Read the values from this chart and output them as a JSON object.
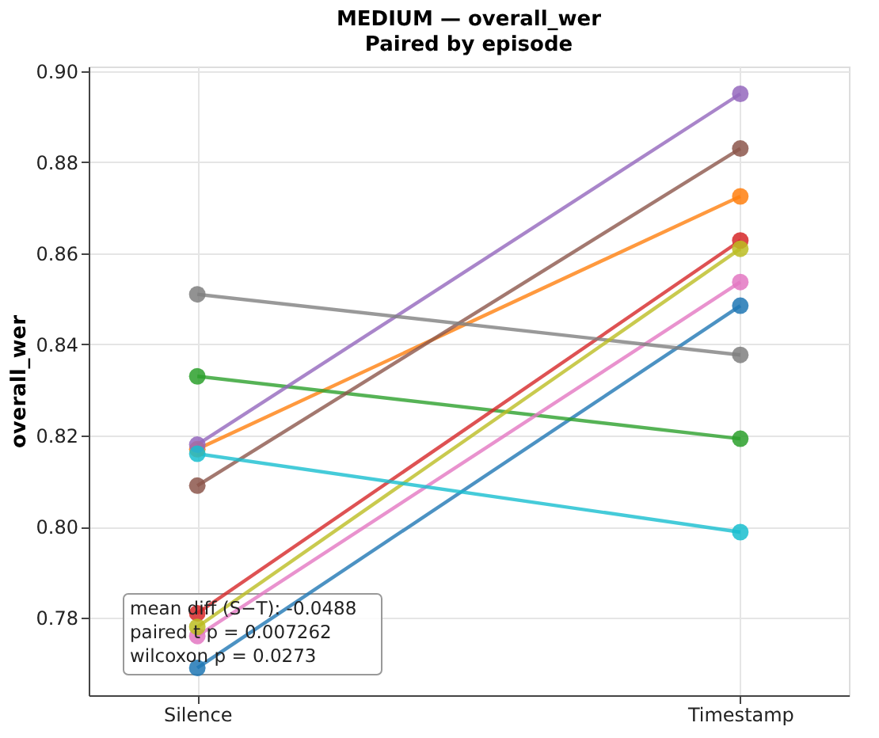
{
  "chart_data": {
    "type": "line",
    "title": "MEDIUM — overall_wer",
    "subtitle": "Paired by episode",
    "ylabel": "overall_wer",
    "categories": [
      "Silence",
      "Timestamp"
    ],
    "series": [
      {
        "color": "#1f77b4",
        "values": [
          0.769,
          0.8485
        ]
      },
      {
        "color": "#ff7f0e",
        "values": [
          0.817,
          0.8725
        ]
      },
      {
        "color": "#2ca02c",
        "values": [
          0.833,
          0.8193
        ]
      },
      {
        "color": "#d62728",
        "values": [
          0.781,
          0.8628
        ]
      },
      {
        "color": "#9467bd",
        "values": [
          0.818,
          0.895
        ]
      },
      {
        "color": "#8c564b",
        "values": [
          0.809,
          0.883
        ]
      },
      {
        "color": "#e377c2",
        "values": [
          0.776,
          0.8537
        ]
      },
      {
        "color": "#7f7f7f",
        "values": [
          0.851,
          0.8377
        ]
      },
      {
        "color": "#bcbd22",
        "values": [
          0.778,
          0.861
        ]
      },
      {
        "color": "#17becf",
        "values": [
          0.816,
          0.7988
        ]
      }
    ],
    "ylim": [
      0.763,
      0.901
    ],
    "yticks": [
      {
        "value": 0.78,
        "label": "0.78"
      },
      {
        "value": 0.8,
        "label": "0.80"
      },
      {
        "value": 0.82,
        "label": "0.82"
      },
      {
        "value": 0.84,
        "label": "0.84"
      },
      {
        "value": 0.86,
        "label": "0.86"
      },
      {
        "value": 0.88,
        "label": "0.88"
      },
      {
        "value": 0.9,
        "label": "0.90"
      }
    ],
    "annotations": [
      "mean diff (S−T): -0.0488",
      "paired t p = 0.007262",
      "wilcoxon p = 0.0273"
    ],
    "grid": true,
    "legend": false,
    "marker": "circle",
    "line_style": "solid"
  }
}
